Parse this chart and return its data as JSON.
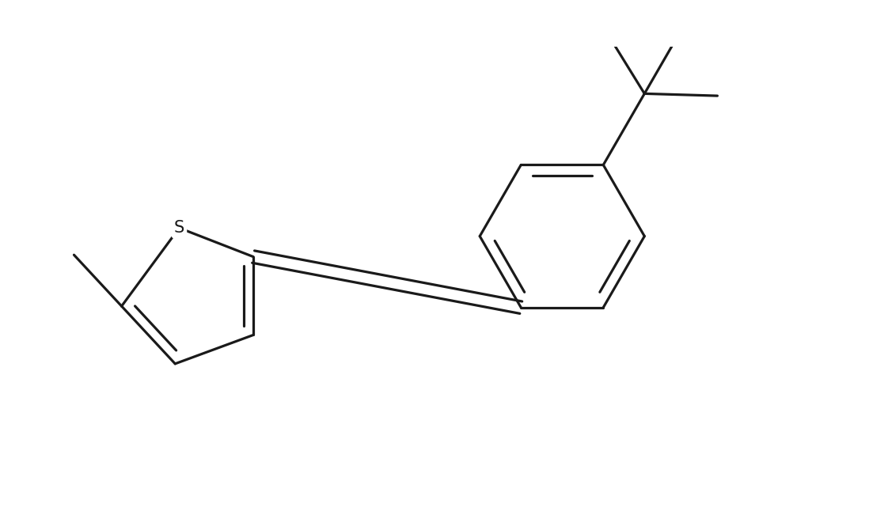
{
  "background_color": "#ffffff",
  "line_color": "#1a1a1a",
  "line_width": 2.3,
  "font_size": 15,
  "atom_label_color": "#1a1a1a",
  "figsize": [
    10.98,
    6.7
  ],
  "dpi": 100
}
